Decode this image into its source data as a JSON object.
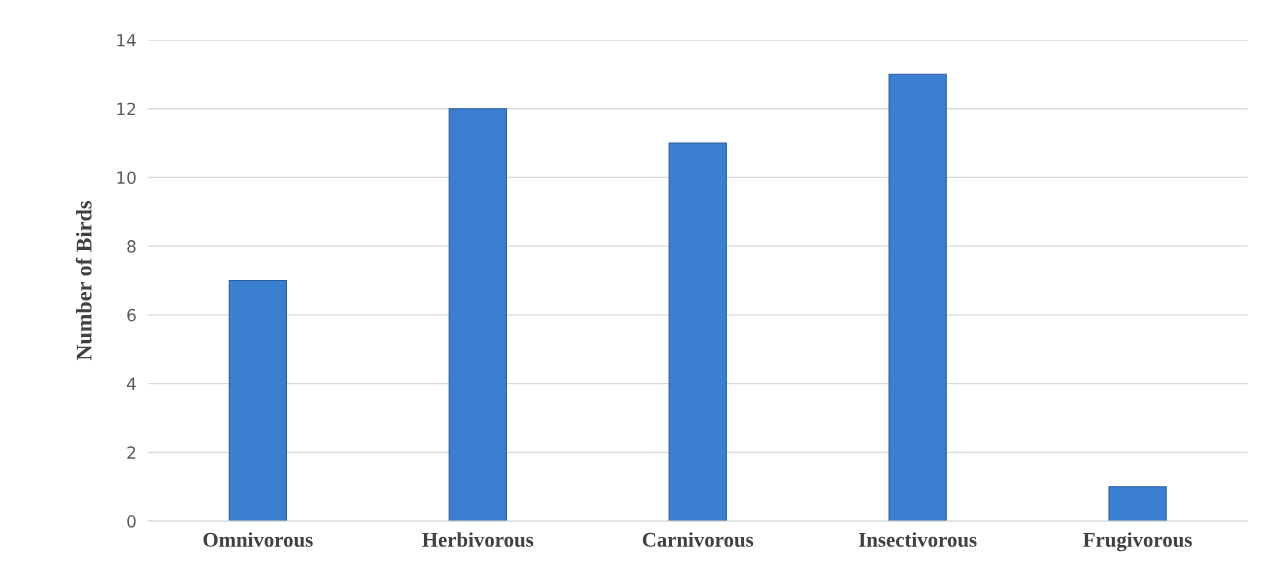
{
  "chart_data": {
    "type": "bar",
    "ylabel": "Number of Birds",
    "categories": [
      "Omnivorous",
      "Herbivorous",
      "Carnivorous",
      "Insectivorous",
      "Frugivorous"
    ],
    "values": [
      7,
      12,
      11,
      13,
      1
    ],
    "color": "#3a7fd0",
    "ylim": [
      0,
      14
    ],
    "yticks": [
      0,
      2,
      4,
      6,
      8,
      10,
      12,
      14
    ],
    "grid": "y"
  }
}
